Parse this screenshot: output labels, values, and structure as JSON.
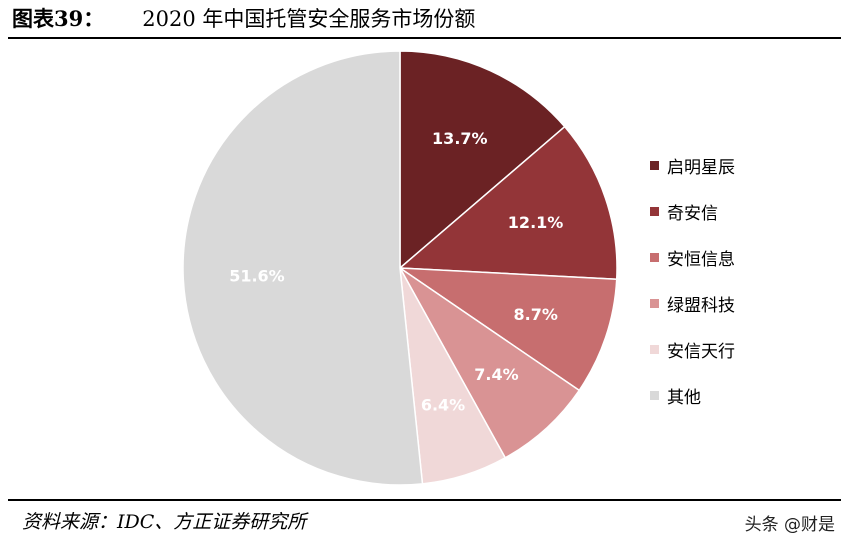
{
  "header": {
    "figure_label": "图表39：",
    "title": "2020 年中国托管安全服务市场份额"
  },
  "chart_data": {
    "type": "pie",
    "title": "2020 年中国托管安全服务市场份额",
    "categories": [
      "启明星辰",
      "奇安信",
      "安恒信息",
      "绿盟科技",
      "安信天行",
      "其他"
    ],
    "values": [
      13.7,
      12.1,
      8.7,
      7.4,
      6.4,
      51.6
    ],
    "labels": [
      "13.7%",
      "12.1%",
      "8.7%",
      "7.4%",
      "6.4%",
      "51.6%"
    ],
    "colors": [
      "#6b2224",
      "#933538",
      "#c76e6f",
      "#d99394",
      "#f0d8d8",
      "#d9d9d9"
    ],
    "start_angle": "12 o'clock",
    "direction": "clockwise",
    "legend_position": "right"
  },
  "footer": {
    "source": "资料来源：IDC、方正证券研究所",
    "watermark": "头条 @财是"
  }
}
